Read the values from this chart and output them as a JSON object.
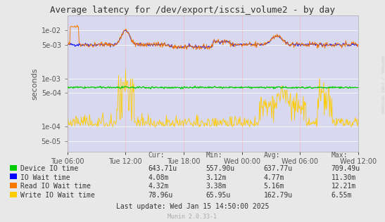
{
  "title": "Average latency for /dev/export/iscsi_volume2 - by day",
  "ylabel": "seconds",
  "right_label": "RRDTOOL / TOBI OETIKER",
  "bg_color": "#e8e8e8",
  "plot_bg_color": "#d8d8f0",
  "x_ticks_labels": [
    "Tue 06:00",
    "Tue 12:00",
    "Tue 18:00",
    "Wed 00:00",
    "Wed 06:00",
    "Wed 12:00"
  ],
  "y_ticks": [
    5e-05,
    0.0001,
    0.0005,
    0.001,
    0.005,
    0.01
  ],
  "ylim": [
    3e-05,
    0.02
  ],
  "legend_colors": [
    "#00cc00",
    "#0000ff",
    "#f57900",
    "#ffcc00"
  ],
  "legend_labels": [
    "Device IO time",
    "IO Wait time",
    "Read IO Wait time",
    "Write IO Wait time"
  ],
  "table_headers": [
    "Cur:",
    "Min:",
    "Avg:",
    "Max:"
  ],
  "table_rows": [
    [
      "643.71u",
      "557.90u",
      "637.77u",
      "709.49u"
    ],
    [
      "4.08m",
      "3.12m",
      "4.77m",
      "11.30m"
    ],
    [
      "4.32m",
      "3.38m",
      "5.16m",
      "12.21m"
    ],
    [
      "78.96u",
      "65.95u",
      "162.79u",
      "6.55m"
    ]
  ],
  "last_update": "Last update: Wed Jan 15 14:50:00 2025",
  "munin_version": "Munin 2.0.33-1",
  "n_points": 500
}
